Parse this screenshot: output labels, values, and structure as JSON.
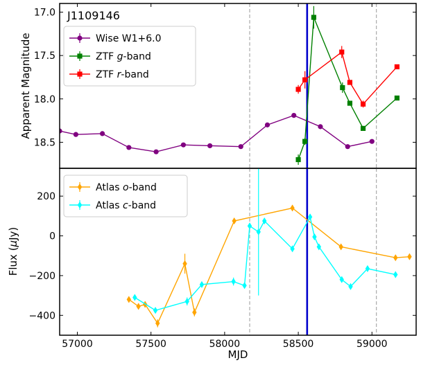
{
  "chart_data": [
    {
      "type": "line",
      "object_label": "J1109146",
      "ylabel": "Apparent Magnitude",
      "y_inverted": true,
      "ylim": [
        18.8,
        16.9
      ],
      "xlim": [
        56880,
        59300
      ],
      "y_ticks": [
        "17.0",
        "17.5",
        "18.0",
        "18.5"
      ],
      "y_tick_values": [
        17.0,
        17.5,
        18.0,
        18.5
      ],
      "legend_position": "upper-left",
      "series": [
        {
          "name": "Wise W1+6.0",
          "legend_text": "Wise W1+6.0",
          "color": "#800080",
          "marker": "circle",
          "x": [
            56880,
            56990,
            57170,
            57350,
            57535,
            57720,
            57900,
            58110,
            58290,
            58470,
            58650,
            58835,
            59000
          ],
          "y": [
            18.37,
            18.41,
            18.4,
            18.56,
            18.61,
            18.53,
            18.54,
            18.55,
            18.3,
            18.19,
            18.32,
            18.55,
            18.49
          ]
        },
        {
          "name": "ZTF g-band",
          "legend_prefix": "ZTF ",
          "legend_italic": "g",
          "legend_suffix": "-band",
          "color": "#008000",
          "marker": "square",
          "x": [
            58500,
            58545,
            58605,
            58800,
            58850,
            58940,
            59170
          ],
          "y": [
            18.7,
            18.49,
            17.06,
            17.87,
            18.05,
            18.34,
            17.99
          ],
          "err": [
            0.06,
            0.04,
            0.13,
            0.06,
            0.02,
            0.02,
            0.02
          ]
        },
        {
          "name": "ZTF r-band",
          "legend_prefix": "ZTF ",
          "legend_italic": "r",
          "legend_suffix": "-band",
          "color": "#ff0000",
          "marker": "square",
          "x": [
            58500,
            58545,
            58795,
            58850,
            58940,
            59170
          ],
          "y": [
            17.89,
            17.78,
            17.46,
            17.81,
            18.06,
            17.63
          ],
          "err": [
            0.05,
            0.1,
            0.07,
            0.02,
            0.04,
            0.02
          ]
        }
      ]
    },
    {
      "type": "line",
      "xlabel": "MJD",
      "ylabel": "Flux (μJy)",
      "ylabel_prefix": "Flux (",
      "ylabel_mu": "μ",
      "ylabel_suffix": "Jy)",
      "xlim": [
        56880,
        59300
      ],
      "ylim": [
        -500,
        340
      ],
      "x_ticks": [
        "57000",
        "57500",
        "58000",
        "58500",
        "59000"
      ],
      "x_tick_values": [
        57000,
        57500,
        58000,
        58500,
        59000
      ],
      "y_ticks": [
        "200",
        "0",
        "−200",
        "−400"
      ],
      "y_tick_values": [
        200,
        0,
        -200,
        -400
      ],
      "legend_position": "upper-left",
      "series": [
        {
          "name": "Atlas o-band",
          "legend_prefix": "Atlas ",
          "legend_italic": "o",
          "legend_suffix": "-band",
          "color": "#ffa500",
          "marker": "diamond",
          "x": [
            57350,
            57415,
            57460,
            57545,
            57730,
            57795,
            58065,
            58460,
            58790,
            59160,
            59255
          ],
          "y": [
            -320,
            -355,
            -345,
            -440,
            -140,
            -385,
            75,
            140,
            -55,
            -110,
            -105
          ],
          "err": [
            15,
            15,
            15,
            20,
            50,
            20,
            10,
            15,
            10,
            12,
            15
          ]
        },
        {
          "name": "Atlas c-band",
          "legend_prefix": "Atlas ",
          "legend_italic": "c",
          "legend_suffix": "-band",
          "color": "#00ffff",
          "marker": "diamond",
          "x": [
            57390,
            57530,
            57745,
            57845,
            58060,
            58135,
            58170,
            58230,
            58270,
            58460,
            58580,
            58610,
            58640,
            58795,
            58855,
            58970,
            59160
          ],
          "y": [
            -310,
            -375,
            -330,
            -245,
            -230,
            -250,
            50,
            20,
            75,
            -65,
            95,
            -5,
            -55,
            -220,
            -255,
            -165,
            -195
          ],
          "err": [
            15,
            15,
            20,
            15,
            20,
            15,
            15,
            320,
            15,
            15,
            15,
            15,
            15,
            15,
            15,
            15,
            15
          ]
        }
      ]
    }
  ],
  "markers": {
    "vertical_solid_color": "#0000cc",
    "vertical_solid_x": 58560,
    "vertical_dashed_color": "#aaaaaa",
    "vertical_dashed_x": [
      58170,
      59030
    ]
  }
}
